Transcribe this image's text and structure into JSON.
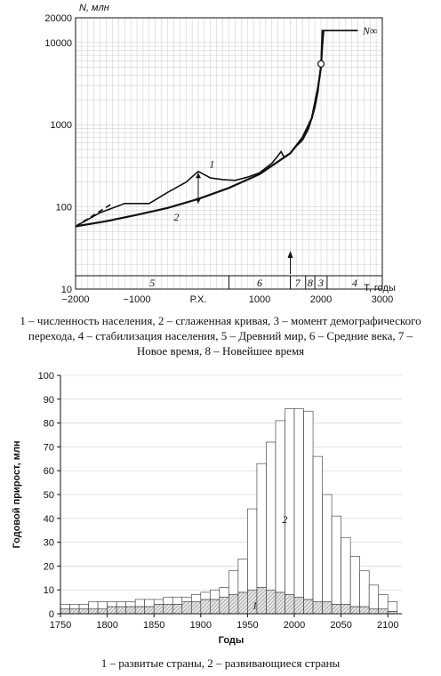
{
  "chart_data": [
    {
      "type": "line",
      "y_axis_label": "N, млн",
      "x_axis_label": "T, годы",
      "y_scale": "log",
      "ylim": [
        10,
        20000
      ],
      "xlim": [
        -2000,
        3000
      ],
      "x_ticks": [
        "−2000",
        "−1000",
        "Р.Х.",
        "1000",
        "2000",
        "3000"
      ],
      "y_ticks": [
        "10",
        "100",
        "1000",
        "10000",
        "20000"
      ],
      "asymptote_label": "N∞",
      "series": [
        {
          "name": "1",
          "style": "solid-irregular",
          "points": [
            [
              -2000,
              58
            ],
            [
              -1600,
              85
            ],
            [
              -1200,
              110
            ],
            [
              -1000,
              110
            ],
            [
              -800,
              110
            ],
            [
              -500,
              150
            ],
            [
              -200,
              200
            ],
            [
              0,
              270
            ],
            [
              200,
              225
            ],
            [
              400,
              215
            ],
            [
              600,
              210
            ],
            [
              800,
              230
            ],
            [
              1000,
              260
            ],
            [
              1200,
              340
            ],
            [
              1300,
              420
            ],
            [
              1350,
              470
            ],
            [
              1400,
              400
            ],
            [
              1500,
              450
            ],
            [
              1600,
              550
            ],
            [
              1700,
              650
            ],
            [
              1800,
              900
            ],
            [
              1900,
              1600
            ],
            [
              1950,
              2500
            ],
            [
              2000,
              5500
            ],
            [
              2020,
              14000
            ],
            [
              2600,
              14000
            ]
          ]
        },
        {
          "name": "2",
          "style": "smooth",
          "points": [
            [
              -2000,
              58
            ],
            [
              -1500,
              67
            ],
            [
              -1000,
              80
            ],
            [
              -500,
              97
            ],
            [
              0,
              125
            ],
            [
              500,
              170
            ],
            [
              1000,
              250
            ],
            [
              1500,
              450
            ],
            [
              1700,
              700
            ],
            [
              1850,
              1200
            ],
            [
              1950,
              2800
            ],
            [
              2000,
              5000
            ],
            [
              2020,
              9000
            ],
            [
              2040,
              14000
            ]
          ]
        }
      ],
      "dashed_segment": [
        [
          -2000,
          58
        ],
        [
          -1400,
          110
        ]
      ],
      "transition_point": [
        2000,
        5500
      ],
      "annotations": [
        "1",
        "2"
      ],
      "period_bar": [
        "5",
        "6",
        "7",
        "8",
        "3",
        "4"
      ]
    },
    {
      "type": "bar",
      "stacked": true,
      "ylabel": "Годовой прирост, млн",
      "xlabel": "Годы",
      "ylim": [
        0,
        100
      ],
      "xlim": [
        1750,
        2115
      ],
      "x_ticks": [
        "1750",
        "1800",
        "1850",
        "1900",
        "1950",
        "2000",
        "2050",
        "2100"
      ],
      "y_ticks": [
        "0",
        "10",
        "20",
        "30",
        "40",
        "50",
        "60",
        "70",
        "80",
        "90",
        "100"
      ],
      "categories": [
        1750,
        1760,
        1770,
        1780,
        1790,
        1800,
        1810,
        1820,
        1830,
        1840,
        1850,
        1860,
        1870,
        1880,
        1890,
        1900,
        1910,
        1920,
        1930,
        1940,
        1950,
        1960,
        1970,
        1980,
        1990,
        2000,
        2010,
        2020,
        2030,
        2040,
        2050,
        2060,
        2070,
        2080,
        2090,
        2100
      ],
      "series": [
        {
          "name": "1",
          "values": [
            2,
            2,
            2,
            2,
            2,
            3,
            3,
            3,
            3,
            3,
            4,
            4,
            4,
            5,
            5,
            6,
            6,
            7,
            8,
            9,
            10,
            11,
            10,
            9,
            8,
            7,
            6,
            5,
            5,
            4,
            4,
            3,
            3,
            2,
            2,
            1
          ]
        },
        {
          "name": "2",
          "values": [
            2,
            2,
            2,
            3,
            3,
            2,
            2,
            2,
            3,
            3,
            2,
            3,
            3,
            2,
            3,
            3,
            4,
            4,
            10,
            14,
            34,
            52,
            62,
            72,
            78,
            79,
            79,
            61,
            45,
            37,
            28,
            21,
            15,
            10,
            6,
            4
          ]
        }
      ],
      "annotations": [
        "1",
        "2"
      ]
    }
  ],
  "captions": {
    "top": "1 – численность населения, 2 – сглаженная кривая, 3 – момент демографического перехода, 4 – стабилизация населения, 5 – Древний мир, 6 – Средние века, 7 – Новое время, 8 – Новейшее время",
    "bottom": "1 – развитые страны, 2 – развивающиеся страны"
  },
  "colors": {
    "line": "#111111",
    "bar_fill": "#ffffff",
    "hatch": "#777777"
  }
}
